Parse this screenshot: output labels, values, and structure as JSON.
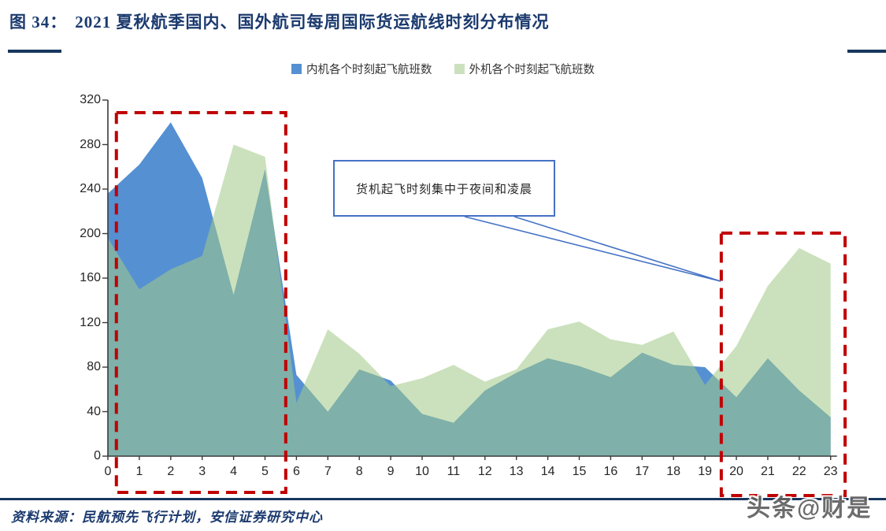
{
  "header": {
    "figure_label": "图 34：",
    "title": "2021 夏秋航季国内、国外航司每周国际货运航线时刻分布情况"
  },
  "legend": {
    "items": [
      {
        "label": "内机各个时刻起飞航班数",
        "color": "#5590d2"
      },
      {
        "label": "外机各个时刻起飞航班数",
        "color": "#cbe1bd"
      }
    ]
  },
  "annotation": {
    "text": "货机起飞时刻集中于夜间和凌晨"
  },
  "source": {
    "text": "资料来源：民航预先飞行计划，安信证券研究中心"
  },
  "watermark": {
    "text": "头条@财是"
  },
  "chart_data": {
    "type": "area",
    "title": "2021 夏秋航季国内、国外航司每周国际货运航线时刻分布情况",
    "xlabel": "",
    "ylabel": "",
    "x": [
      0,
      1,
      2,
      3,
      4,
      5,
      6,
      7,
      8,
      9,
      10,
      11,
      12,
      13,
      14,
      15,
      16,
      17,
      18,
      19,
      20,
      21,
      22,
      23
    ],
    "series": [
      {
        "name": "内机各个时刻起飞航班数",
        "color": "#5590d2",
        "values": [
          236,
          262,
          300,
          250,
          145,
          258,
          73,
          40,
          78,
          68,
          38,
          30,
          59,
          75,
          88,
          81,
          71,
          93,
          82,
          80,
          53,
          88,
          59,
          35
        ]
      },
      {
        "name": "外机各个时刻起飞航班数",
        "color": "#cbe1bd",
        "overlay_fill": "rgba(161,201,136,0.556)",
        "values": [
          196,
          150,
          168,
          180,
          280,
          269,
          48,
          114,
          92,
          63,
          70,
          82,
          67,
          78,
          114,
          121,
          105,
          100,
          112,
          64,
          99,
          153,
          187,
          173
        ]
      }
    ],
    "ylim": [
      0,
      320
    ],
    "ytick_step": 40,
    "grid": false,
    "legend_position": "top",
    "axis_color": "#3a3a3a",
    "highlight_color": "#c00000",
    "highlights": [
      {
        "label": "night-early-morning-hours",
        "h0": 0.27,
        "h1": 5.66,
        "v0": -32.6,
        "v1": 308.7
      },
      {
        "label": "evening-hours",
        "h0": 19.52,
        "h1": 23.46,
        "v0": -35.4,
        "v1": 200.4
      }
    ]
  }
}
